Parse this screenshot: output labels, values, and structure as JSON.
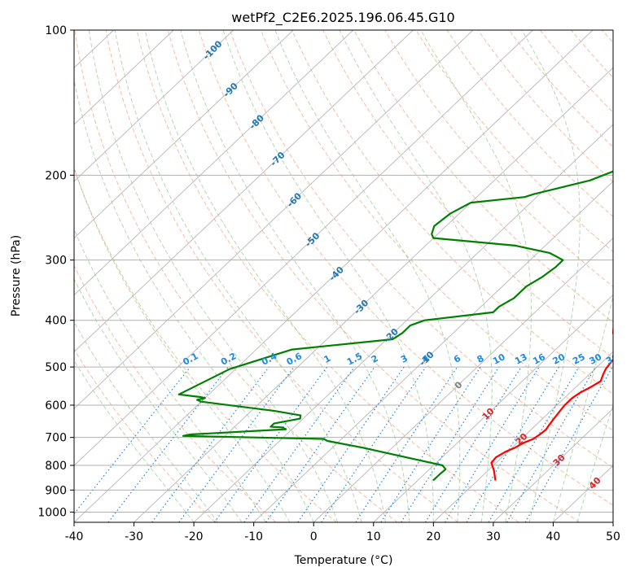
{
  "chart_data": {
    "type": "line",
    "subtype": "skew-t log-p diagram",
    "title": "wetPf2_C2E6.2025.196.06.45.G10",
    "xlabel": "Temperature (°C)",
    "ylabel": "Pressure (hPa)",
    "xlim": [
      -40,
      50
    ],
    "ylim": [
      1050,
      100
    ],
    "y_scale": "log",
    "grid": true,
    "x_ticks": [
      -40,
      -30,
      -20,
      -10,
      0,
      10,
      20,
      30,
      40,
      50
    ],
    "y_ticks": [
      100,
      200,
      300,
      400,
      500,
      600,
      700,
      800,
      900,
      1000
    ],
    "series": [
      {
        "key": "temperature",
        "color": "#ff0000",
        "points": [
          [
            23,
            860
          ],
          [
            21,
            820
          ],
          [
            19.2,
            790
          ],
          [
            19,
            770
          ],
          [
            19.6,
            750
          ],
          [
            20.5,
            735
          ],
          [
            21.1,
            718
          ],
          [
            22,
            705
          ],
          [
            22.3,
            690
          ],
          [
            22.5,
            675
          ],
          [
            22.2,
            660
          ],
          [
            21.9,
            640
          ],
          [
            21.6,
            620
          ],
          [
            21.3,
            600
          ],
          [
            21.3,
            580
          ],
          [
            21.7,
            565
          ],
          [
            22.5,
            550
          ],
          [
            23.1,
            535
          ],
          [
            22.4,
            520
          ],
          [
            21.8,
            505
          ],
          [
            21.5,
            490
          ],
          [
            21.3,
            475
          ],
          [
            20.9,
            465
          ],
          [
            19.3,
            450
          ],
          [
            16.7,
            425
          ],
          [
            14.6,
            400
          ],
          [
            12.6,
            375
          ],
          [
            10.3,
            350
          ],
          [
            8.6,
            330
          ],
          [
            7.1,
            310
          ],
          [
            6.1,
            296
          ],
          [
            6.1,
            285
          ],
          [
            6.7,
            275
          ],
          [
            6.7,
            262
          ],
          [
            6.3,
            250
          ],
          [
            5.3,
            235
          ],
          [
            4.2,
            220
          ],
          [
            3.0,
            205
          ],
          [
            3.0,
            190
          ],
          [
            3.0,
            170
          ],
          [
            3.1,
            150
          ],
          [
            3.2,
            130
          ],
          [
            3.4,
            115
          ],
          [
            4.2,
            100
          ]
        ]
      },
      {
        "key": "dewpoint",
        "color": "#008000",
        "points": [
          [
            12.6,
            860
          ],
          [
            12.6,
            835
          ],
          [
            12.7,
            815
          ],
          [
            11.5,
            800
          ],
          [
            -5,
            735
          ],
          [
            -12,
            712
          ],
          [
            -13,
            705
          ],
          [
            -37,
            695
          ],
          [
            -36,
            690
          ],
          [
            -21,
            673
          ],
          [
            -22,
            667
          ],
          [
            -24,
            665
          ],
          [
            -24,
            655
          ],
          [
            -20.5,
            640
          ],
          [
            -21,
            630
          ],
          [
            -26,
            617
          ],
          [
            -40,
            590
          ],
          [
            -41,
            585
          ],
          [
            -40,
            580
          ],
          [
            -41,
            577
          ],
          [
            -45,
            570
          ],
          [
            -41,
            505
          ],
          [
            -34,
            460
          ],
          [
            -19,
            438
          ],
          [
            -18.5,
            425
          ],
          [
            -18.5,
            410
          ],
          [
            -17,
            400
          ],
          [
            -7,
            385
          ],
          [
            -7,
            375
          ],
          [
            -6,
            360
          ],
          [
            -6,
            340
          ],
          [
            -5,
            325
          ],
          [
            -4.5,
            310
          ],
          [
            -4.5,
            300
          ],
          [
            -8,
            290
          ],
          [
            -15,
            280
          ],
          [
            -30,
            270
          ],
          [
            -31,
            265
          ],
          [
            -32,
            255
          ],
          [
            -31.5,
            240
          ],
          [
            -30,
            228
          ],
          [
            -22,
            222
          ],
          [
            -21,
            219
          ],
          [
            -14,
            205
          ],
          [
            -10,
            190
          ],
          [
            -9,
            170
          ],
          [
            -8,
            165
          ],
          [
            -6,
            150
          ],
          [
            -4,
            140
          ],
          [
            -2.5,
            130
          ],
          [
            0,
            120
          ],
          [
            2,
            110
          ],
          [
            3,
            100
          ]
        ]
      }
    ],
    "isotherm_labels": [
      "-100",
      "-90",
      "-80",
      "-70",
      "-60",
      "-50",
      "-40",
      "-30",
      "-20",
      "-10",
      "0",
      "10",
      "20",
      "30",
      "40"
    ],
    "mixing_ratio_labels": [
      "0.1",
      "0.2",
      "0.4",
      "0.6",
      "1",
      "1.5",
      "2",
      "3",
      "4",
      "6",
      "8",
      "10",
      "13",
      "16",
      "20",
      "25",
      "30",
      "36"
    ],
    "colors": {
      "temperature": "#ff0000",
      "dewpoint": "#008000",
      "dry_adiabat": "#f4a582",
      "moist_adiabat": "#7fbf7b",
      "mixing_ratio": "#1e88e5",
      "isotherm": "#bdbdbd",
      "grid": "#b0b0b0",
      "isotherm_label_cold": "#1f77b4",
      "isotherm_label_zero": "#7f7f7f",
      "isotherm_label_warm": "#d62728"
    }
  }
}
